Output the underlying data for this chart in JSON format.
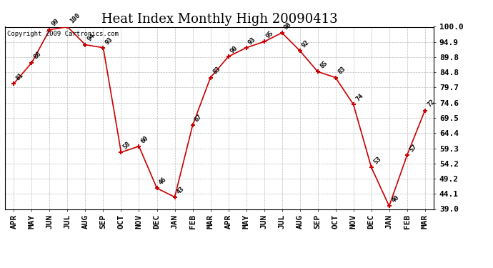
{
  "title": "Heat Index Monthly High 20090413",
  "copyright": "Copyright 2009 Cartronics.com",
  "months": [
    "APR",
    "MAY",
    "JUN",
    "JUL",
    "AUG",
    "SEP",
    "OCT",
    "NOV",
    "DEC",
    "JAN",
    "FEB",
    "MAR",
    "APR",
    "MAY",
    "JUN",
    "JUL",
    "AUG",
    "SEP",
    "OCT",
    "NOV",
    "DEC",
    "JAN",
    "FEB",
    "MAR"
  ],
  "values": [
    81,
    88,
    99,
    100,
    94,
    93,
    58,
    60,
    46,
    43,
    67,
    83,
    90,
    93,
    95,
    98,
    92,
    85,
    83,
    74,
    53,
    40,
    57,
    72
  ],
  "ylim": [
    39.0,
    100.0
  ],
  "ytick_values": [
    39.0,
    44.1,
    49.2,
    54.2,
    59.3,
    64.4,
    69.5,
    74.6,
    79.7,
    84.8,
    89.8,
    94.9,
    100.0
  ],
  "ytick_labels": [
    "39.0",
    "44.1",
    "49.2",
    "54.2",
    "59.3",
    "64.4",
    "69.5",
    "74.6",
    "79.7",
    "84.8",
    "89.8",
    "94.9",
    "100.0"
  ],
  "line_color": "#cc0000",
  "marker_color": "#cc0000",
  "bg_color": "#ffffff",
  "grid_color": "#bbbbbb",
  "title_fontsize": 13,
  "label_fontsize": 6.5,
  "tick_fontsize": 8,
  "copyright_fontsize": 6.5
}
